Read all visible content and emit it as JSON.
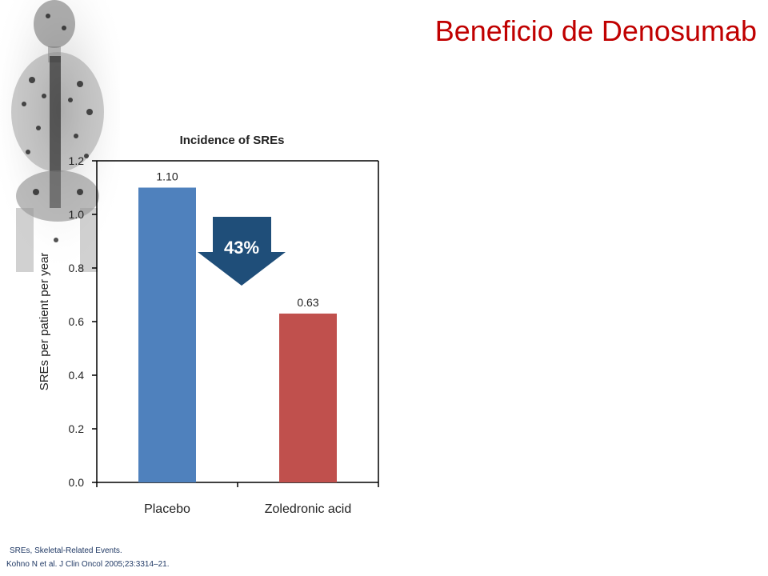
{
  "slide": {
    "title": "Beneficio de Denosumab"
  },
  "chart_data": {
    "type": "bar",
    "title": "Incidence of SREs",
    "ylabel": "SREs per patient per year",
    "xlabel": "",
    "categories": [
      "Placebo",
      "Zoledronic acid"
    ],
    "values": [
      1.1,
      0.63
    ],
    "value_labels": [
      "1.10",
      "0.63"
    ],
    "colors": [
      "#4f81bd",
      "#c0504d"
    ],
    "ylim": [
      0,
      1.2
    ],
    "yticks": [
      "0.0",
      "0.2",
      "0.4",
      "0.6",
      "0.8",
      "1.0",
      "1.2"
    ],
    "grid": false,
    "annotation": {
      "text": "43%",
      "color": "#1f4e79"
    }
  },
  "footnotes": {
    "definition": "SREs, Skeletal-Related Events.",
    "reference": "Kohno N et al. J Clin Oncol 2005;23:3314–21."
  }
}
